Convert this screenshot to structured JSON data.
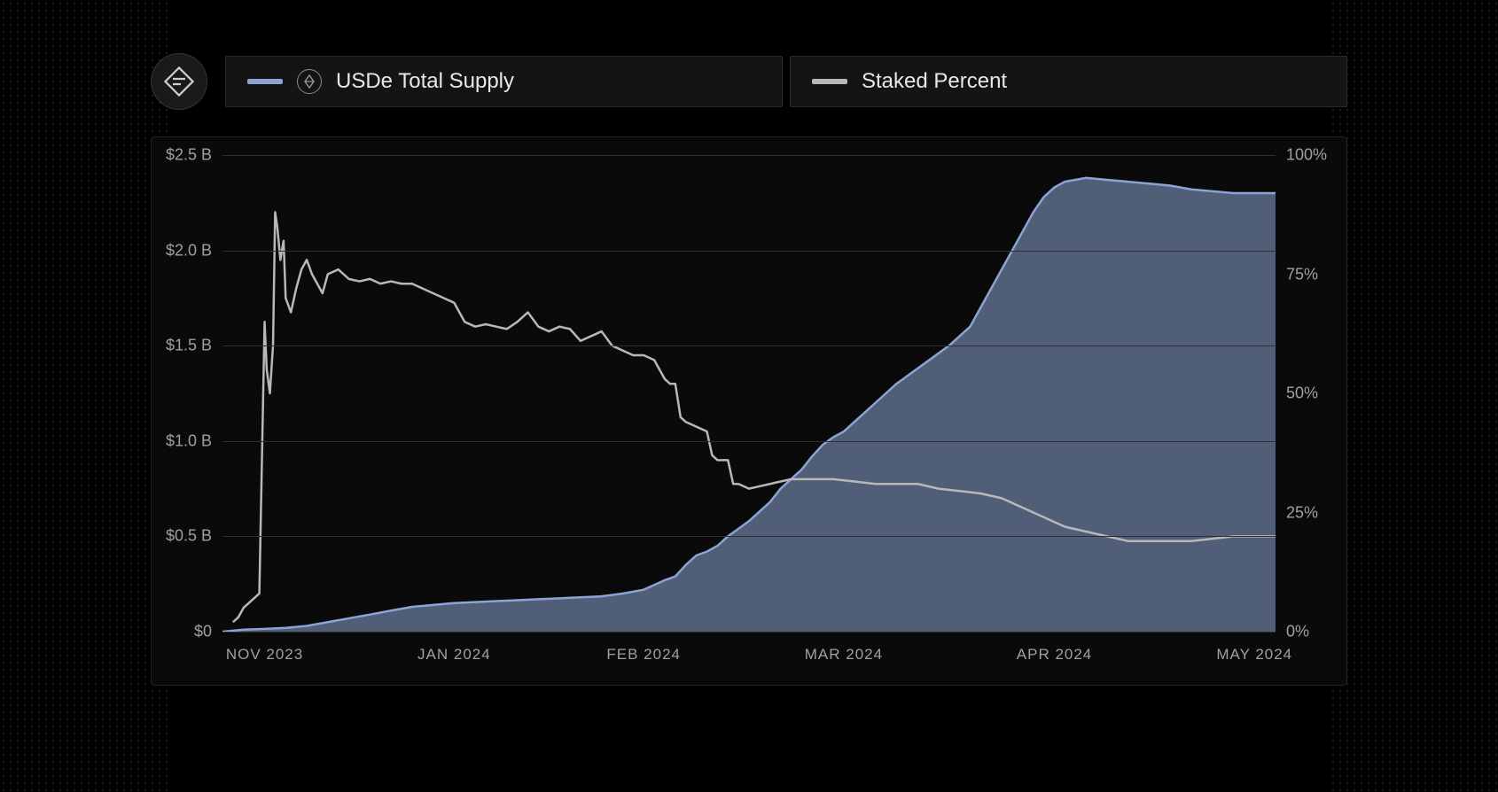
{
  "legend": {
    "series1": {
      "label": "USDe Total Supply",
      "color": "#8ca4d4"
    },
    "series2": {
      "label": "Staked Percent",
      "color": "#b8b8b8"
    }
  },
  "chart": {
    "type": "area+line",
    "background_color": "#0a0a0a",
    "grid_color": "#2e2e2e",
    "text_color": "#a0a0a0",
    "label_fontsize": 18,
    "y_left": {
      "min": 0,
      "max": 2.5,
      "step": 0.5,
      "ticks": [
        "$0",
        "$0.5 B",
        "$1.0 B",
        "$1.5 B",
        "$2.0 B",
        "$2.5 B"
      ]
    },
    "y_right": {
      "min": 0,
      "max": 100,
      "step": 25,
      "ticks": [
        "0%",
        "25%",
        "50%",
        "75%",
        "100%"
      ]
    },
    "x": {
      "labels": [
        "NOV 2023",
        "JAN 2024",
        "FEB 2024",
        "MAR 2024",
        "APR 2024",
        "MAY 2024"
      ],
      "positions": [
        0.04,
        0.22,
        0.4,
        0.59,
        0.79,
        0.98
      ]
    },
    "supply_series": {
      "color": "#8ca4d4",
      "fill_color": "#8ca4d4",
      "fill_opacity": 0.55,
      "line_width": 2.5,
      "data": [
        [
          0.0,
          0.0
        ],
        [
          0.02,
          0.01
        ],
        [
          0.04,
          0.015
        ],
        [
          0.06,
          0.02
        ],
        [
          0.08,
          0.03
        ],
        [
          0.1,
          0.05
        ],
        [
          0.12,
          0.07
        ],
        [
          0.14,
          0.09
        ],
        [
          0.16,
          0.11
        ],
        [
          0.18,
          0.13
        ],
        [
          0.2,
          0.14
        ],
        [
          0.22,
          0.15
        ],
        [
          0.24,
          0.155
        ],
        [
          0.26,
          0.16
        ],
        [
          0.28,
          0.165
        ],
        [
          0.3,
          0.17
        ],
        [
          0.32,
          0.175
        ],
        [
          0.34,
          0.18
        ],
        [
          0.36,
          0.185
        ],
        [
          0.38,
          0.2
        ],
        [
          0.4,
          0.22
        ],
        [
          0.42,
          0.27
        ],
        [
          0.43,
          0.29
        ],
        [
          0.44,
          0.35
        ],
        [
          0.45,
          0.4
        ],
        [
          0.46,
          0.42
        ],
        [
          0.47,
          0.45
        ],
        [
          0.48,
          0.5
        ],
        [
          0.49,
          0.54
        ],
        [
          0.5,
          0.58
        ],
        [
          0.51,
          0.63
        ],
        [
          0.52,
          0.68
        ],
        [
          0.53,
          0.75
        ],
        [
          0.54,
          0.8
        ],
        [
          0.55,
          0.85
        ],
        [
          0.56,
          0.92
        ],
        [
          0.57,
          0.98
        ],
        [
          0.58,
          1.02
        ],
        [
          0.59,
          1.05
        ],
        [
          0.6,
          1.1
        ],
        [
          0.61,
          1.15
        ],
        [
          0.62,
          1.2
        ],
        [
          0.63,
          1.25
        ],
        [
          0.64,
          1.3
        ],
        [
          0.65,
          1.34
        ],
        [
          0.66,
          1.38
        ],
        [
          0.67,
          1.42
        ],
        [
          0.68,
          1.46
        ],
        [
          0.69,
          1.5
        ],
        [
          0.7,
          1.55
        ],
        [
          0.71,
          1.6
        ],
        [
          0.72,
          1.7
        ],
        [
          0.73,
          1.8
        ],
        [
          0.74,
          1.9
        ],
        [
          0.75,
          2.0
        ],
        [
          0.76,
          2.1
        ],
        [
          0.77,
          2.2
        ],
        [
          0.78,
          2.28
        ],
        [
          0.79,
          2.33
        ],
        [
          0.8,
          2.36
        ],
        [
          0.82,
          2.38
        ],
        [
          0.84,
          2.37
        ],
        [
          0.86,
          2.36
        ],
        [
          0.88,
          2.35
        ],
        [
          0.9,
          2.34
        ],
        [
          0.92,
          2.32
        ],
        [
          0.94,
          2.31
        ],
        [
          0.96,
          2.3
        ],
        [
          0.98,
          2.3
        ],
        [
          1.0,
          2.3
        ]
      ]
    },
    "staked_series": {
      "color": "#b8b8b8",
      "line_width": 2.5,
      "data": [
        [
          0.01,
          2
        ],
        [
          0.015,
          3
        ],
        [
          0.02,
          5
        ],
        [
          0.025,
          6
        ],
        [
          0.03,
          7
        ],
        [
          0.035,
          8
        ],
        [
          0.04,
          65
        ],
        [
          0.042,
          55
        ],
        [
          0.045,
          50
        ],
        [
          0.048,
          60
        ],
        [
          0.05,
          88
        ],
        [
          0.052,
          85
        ],
        [
          0.055,
          78
        ],
        [
          0.058,
          82
        ],
        [
          0.06,
          70
        ],
        [
          0.065,
          67
        ],
        [
          0.07,
          72
        ],
        [
          0.075,
          76
        ],
        [
          0.08,
          78
        ],
        [
          0.085,
          75
        ],
        [
          0.09,
          73
        ],
        [
          0.095,
          71
        ],
        [
          0.1,
          75
        ],
        [
          0.11,
          76
        ],
        [
          0.12,
          74
        ],
        [
          0.13,
          73.5
        ],
        [
          0.14,
          74
        ],
        [
          0.15,
          73
        ],
        [
          0.16,
          73.5
        ],
        [
          0.17,
          73
        ],
        [
          0.18,
          73
        ],
        [
          0.19,
          72
        ],
        [
          0.2,
          71
        ],
        [
          0.21,
          70
        ],
        [
          0.22,
          69
        ],
        [
          0.23,
          65
        ],
        [
          0.24,
          64
        ],
        [
          0.25,
          64.5
        ],
        [
          0.26,
          64
        ],
        [
          0.27,
          63.5
        ],
        [
          0.28,
          65
        ],
        [
          0.29,
          67
        ],
        [
          0.3,
          64
        ],
        [
          0.31,
          63
        ],
        [
          0.32,
          64
        ],
        [
          0.33,
          63.5
        ],
        [
          0.34,
          61
        ],
        [
          0.35,
          62
        ],
        [
          0.36,
          63
        ],
        [
          0.37,
          60
        ],
        [
          0.38,
          59
        ],
        [
          0.39,
          58
        ],
        [
          0.4,
          58
        ],
        [
          0.41,
          57
        ],
        [
          0.42,
          53
        ],
        [
          0.425,
          52
        ],
        [
          0.43,
          52
        ],
        [
          0.435,
          45
        ],
        [
          0.44,
          44
        ],
        [
          0.45,
          43
        ],
        [
          0.46,
          42
        ],
        [
          0.465,
          37
        ],
        [
          0.47,
          36
        ],
        [
          0.48,
          36
        ],
        [
          0.485,
          31
        ],
        [
          0.49,
          31
        ],
        [
          0.5,
          30
        ],
        [
          0.51,
          30.5
        ],
        [
          0.52,
          31
        ],
        [
          0.53,
          31.5
        ],
        [
          0.54,
          32
        ],
        [
          0.55,
          32
        ],
        [
          0.56,
          32
        ],
        [
          0.58,
          32
        ],
        [
          0.6,
          31.5
        ],
        [
          0.62,
          31
        ],
        [
          0.64,
          31
        ],
        [
          0.66,
          31
        ],
        [
          0.68,
          30
        ],
        [
          0.7,
          29.5
        ],
        [
          0.72,
          29
        ],
        [
          0.74,
          28
        ],
        [
          0.76,
          26
        ],
        [
          0.78,
          24
        ],
        [
          0.8,
          22
        ],
        [
          0.82,
          21
        ],
        [
          0.84,
          20
        ],
        [
          0.86,
          19
        ],
        [
          0.88,
          19
        ],
        [
          0.9,
          19
        ],
        [
          0.92,
          19
        ],
        [
          0.94,
          19.5
        ],
        [
          0.96,
          20
        ],
        [
          0.98,
          20
        ],
        [
          1.0,
          20
        ]
      ]
    }
  }
}
